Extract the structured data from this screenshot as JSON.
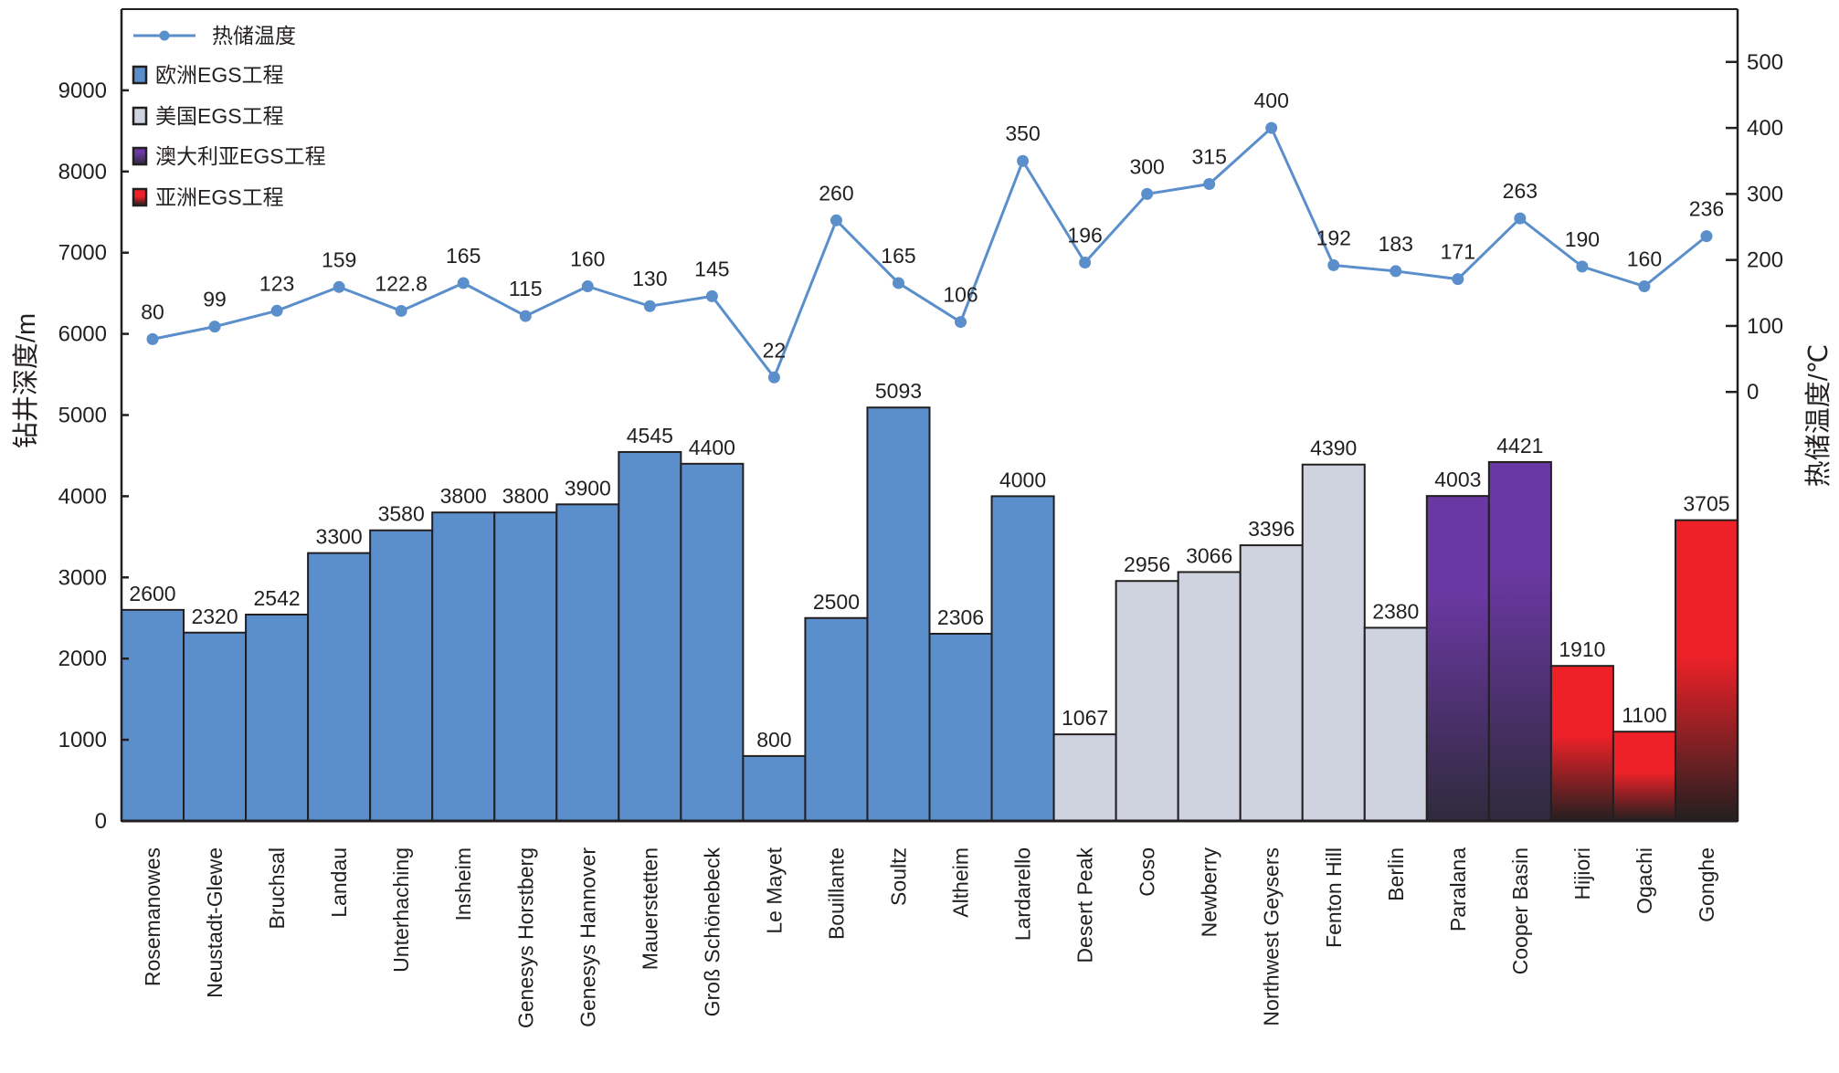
{
  "chart_data": {
    "type": "bar+line",
    "ylabel_left": "钻井深度/m",
    "ylabel_right": "热储温度/℃",
    "ylim_left": [
      0,
      10000
    ],
    "yticks_left": [
      0,
      1000,
      2000,
      3000,
      4000,
      5000,
      6000,
      7000,
      8000,
      9000
    ],
    "ylim_right": [
      -650,
      580
    ],
    "yticks_right": [
      0,
      100,
      200,
      300,
      400,
      500
    ],
    "grid": false,
    "legend_placement": "top-left",
    "legend": [
      {
        "label": "热储温度",
        "kind": "line",
        "color": "#5b8fcb"
      },
      {
        "label": "欧洲EGS工程",
        "kind": "bar",
        "group": "europe"
      },
      {
        "label": "美国EGS工程",
        "kind": "bar",
        "group": "usa"
      },
      {
        "label": "澳大利亚EGS工程",
        "kind": "bar",
        "group": "australia"
      },
      {
        "label": "亚洲EGS工程",
        "kind": "bar",
        "group": "asia"
      }
    ],
    "group_colors": {
      "europe": [
        "#5b8fcb",
        "#5b8fcb"
      ],
      "usa": [
        "#ced3df",
        "#ced3df"
      ],
      "australia": [
        "#6a38a2",
        "#2f2a3c"
      ],
      "asia": [
        "#ee2128",
        "#231f20"
      ]
    },
    "line_color": "#5b8fcb",
    "categories": [
      "Rosemanowes",
      "Neustadt-Glewe",
      "Bruchsal",
      "Landau",
      "Unterhaching",
      "Insheim",
      "Genesys Horstberg",
      "Genesys Hannover",
      "Mauerstetten",
      "Groß Schönebeck",
      "Le Mayet",
      "Bouillante",
      "Soultz",
      "Altheim",
      "Lardarello",
      "Desert Peak",
      "Coso",
      "Newberry",
      "Northwest Geysers",
      "Fenton Hill",
      "Berlin",
      "Paralana",
      "Cooper Basin",
      "Hijiori",
      "Ogachi",
      "Gonghe"
    ],
    "groups": [
      "europe",
      "europe",
      "europe",
      "europe",
      "europe",
      "europe",
      "europe",
      "europe",
      "europe",
      "europe",
      "europe",
      "europe",
      "europe",
      "europe",
      "europe",
      "usa",
      "usa",
      "usa",
      "usa",
      "usa",
      "usa",
      "australia",
      "australia",
      "asia",
      "asia",
      "asia"
    ],
    "depth": [
      2600,
      2320,
      2542,
      3300,
      3580,
      3800,
      3800,
      3900,
      4545,
      4400,
      800,
      2500,
      5093,
      2306,
      4000,
      1067,
      2956,
      3066,
      3396,
      4390,
      2380,
      4003,
      4421,
      1910,
      1100,
      3705
    ],
    "temperature": [
      80,
      99,
      123,
      159,
      122.8,
      165,
      115,
      160,
      130,
      145,
      22,
      260,
      165,
      106,
      350,
      196,
      300,
      315,
      400,
      192,
      183,
      171,
      263,
      190,
      160,
      236
    ]
  }
}
